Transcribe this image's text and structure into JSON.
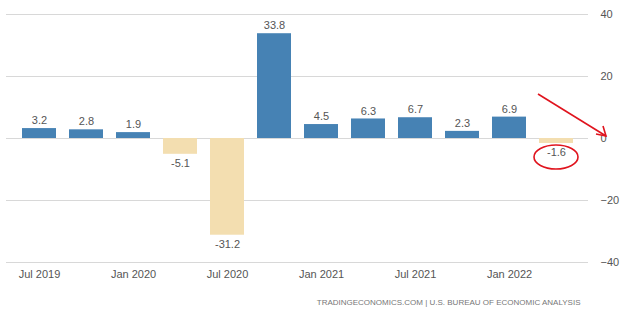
{
  "chart_data": {
    "type": "bar",
    "categories": [
      "Jul 2019",
      null,
      "Jan 2020",
      null,
      "Jul 2020",
      null,
      "Jan 2021",
      null,
      "Jul 2021",
      null,
      "Jan 2022",
      null
    ],
    "values": [
      3.2,
      2.8,
      1.9,
      -5.1,
      -31.2,
      33.8,
      4.5,
      6.3,
      6.7,
      2.3,
      6.9,
      -1.6
    ],
    "colors": [
      "#4682b4",
      "#4682b4",
      "#4682b4",
      "#f3deb0",
      "#f3deb0",
      "#4682b4",
      "#4682b4",
      "#4682b4",
      "#4682b4",
      "#4682b4",
      "#4682b4",
      "#f3deb0"
    ],
    "ylim": [
      -40,
      40
    ],
    "yticks": [
      -40,
      -20,
      0,
      20,
      40
    ],
    "grid": true,
    "data_labels": true,
    "annotations": [
      "TRADINGECONOMICS.COM | U.S. BUREAU OF ECONOMIC ANALYSIS"
    ]
  }
}
